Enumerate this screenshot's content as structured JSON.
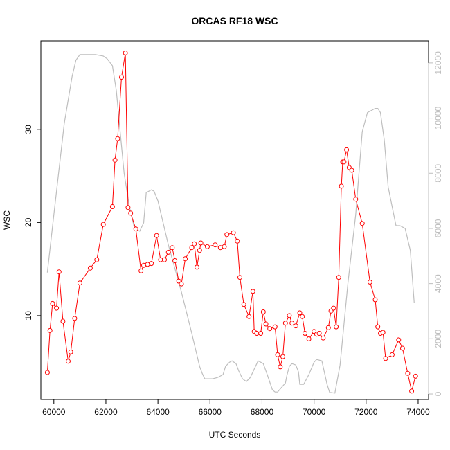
{
  "chart_data": {
    "type": "line",
    "title": "ORCAS RF18 WSC",
    "xlabel": "UTC Seconds",
    "ylabel": "WSC",
    "xlim": [
      59500,
      74400
    ],
    "ylim": [
      1.0,
      39.5
    ],
    "y2lim": [
      -200,
      12800
    ],
    "x_ticks": [
      60000,
      62000,
      64000,
      66000,
      68000,
      70000,
      72000,
      74000
    ],
    "y_ticks": [
      10,
      20,
      30
    ],
    "y2_ticks": [
      0,
      2000,
      4000,
      6000,
      8000,
      10000,
      12000
    ],
    "colors": {
      "series": "#ff0000",
      "secondary": "#bebebe",
      "axis": "#000000",
      "right_axis": "#bdbdbd"
    },
    "series": [
      {
        "axis": "left",
        "style": "line+points",
        "x": [
          59750,
          59850,
          59950,
          60100,
          60200,
          60350,
          60550,
          60650,
          60800,
          61000,
          61400,
          61650,
          61900,
          62250,
          62350,
          62450,
          62600,
          62750,
          62850,
          62950,
          63150,
          63350,
          63450,
          63600,
          63750,
          63950,
          64100,
          64250,
          64400,
          64550,
          64650,
          64800,
          64900,
          65050,
          65300,
          65400,
          65500,
          65600,
          65650,
          65900,
          66200,
          66400,
          66550,
          66650,
          66900,
          67050,
          67150,
          67300,
          67500,
          67650,
          67700,
          67800,
          67950,
          68050,
          68150,
          68300,
          68500,
          68600,
          68700,
          68800,
          68900,
          69050,
          69150,
          69300,
          69450,
          69550,
          69650,
          69800,
          70000,
          70100,
          70200,
          70350,
          70550,
          70650,
          70750,
          70850,
          70950,
          71050,
          71100,
          71150,
          71250,
          71350,
          71450,
          71600,
          71850,
          72150,
          72350,
          72450,
          72550,
          72650,
          72750,
          73000,
          73250,
          73400,
          73600,
          73750,
          73900
        ],
        "y": [
          3.9,
          8.4,
          11.3,
          10.8,
          14.7,
          9.4,
          5.1,
          6.1,
          9.7,
          13.5,
          15.1,
          16.0,
          19.8,
          21.7,
          26.7,
          29.0,
          35.6,
          38.2,
          21.6,
          21.0,
          19.3,
          14.8,
          15.4,
          15.5,
          15.6,
          18.6,
          16.0,
          16.0,
          16.8,
          17.3,
          15.9,
          13.7,
          13.4,
          16.1,
          17.3,
          17.7,
          15.2,
          17.0,
          17.8,
          17.4,
          17.6,
          17.3,
          17.4,
          18.7,
          18.9,
          18.0,
          14.1,
          11.2,
          9.9,
          12.6,
          8.3,
          8.1,
          8.1,
          10.4,
          9.1,
          8.6,
          8.8,
          5.8,
          4.5,
          5.6,
          9.2,
          10.0,
          9.2,
          8.9,
          10.3,
          9.9,
          8.1,
          7.5,
          8.3,
          8.0,
          8.1,
          7.6,
          8.7,
          10.5,
          10.8,
          8.8,
          14.1,
          23.9,
          26.5,
          26.5,
          27.8,
          25.9,
          25.6,
          22.5,
          19.9,
          13.6,
          11.7,
          8.8,
          8.1,
          8.2,
          5.4,
          5.8,
          7.4,
          6.5,
          3.8,
          1.9,
          3.5
        ]
      },
      {
        "axis": "right",
        "style": "line",
        "x": [
          59750,
          60000,
          60400,
          60700,
          60850,
          61000,
          61600,
          61900,
          62050,
          62250,
          62400,
          62550,
          62700,
          62900,
          63100,
          63300,
          63450,
          63550,
          63750,
          63850,
          64000,
          64400,
          64900,
          65300,
          65600,
          65700,
          65800,
          66100,
          66300,
          66500,
          66600,
          66750,
          66850,
          67000,
          67100,
          67250,
          67400,
          67550,
          67650,
          67850,
          68050,
          68200,
          68400,
          68500,
          68600,
          68900,
          68950,
          69050,
          69150,
          69300,
          69400,
          69450,
          69600,
          69800,
          70000,
          70100,
          70300,
          70500,
          70600,
          70650,
          70800,
          71000,
          71300,
          71600,
          71850,
          72050,
          72350,
          72450,
          72550,
          72700,
          72850,
          73150,
          73300,
          73500,
          73700,
          73850
        ],
        "y": [
          4400,
          6500,
          9800,
          11500,
          12100,
          12300,
          12300,
          12250,
          12150,
          11900,
          11000,
          9500,
          8000,
          6800,
          6000,
          5900,
          6200,
          7300,
          7400,
          7350,
          7000,
          5400,
          3700,
          2200,
          1000,
          750,
          550,
          550,
          600,
          700,
          1000,
          1150,
          1200,
          1100,
          850,
          550,
          450,
          600,
          800,
          1200,
          1100,
          700,
          150,
          70,
          70,
          400,
          650,
          1000,
          1100,
          1050,
          800,
          350,
          350,
          700,
          1150,
          1250,
          1200,
          350,
          50,
          50,
          30,
          1050,
          4000,
          6500,
          9500,
          10200,
          10350,
          10350,
          10200,
          9200,
          7500,
          6100,
          6100,
          6000,
          5200,
          3300
        ]
      }
    ]
  }
}
